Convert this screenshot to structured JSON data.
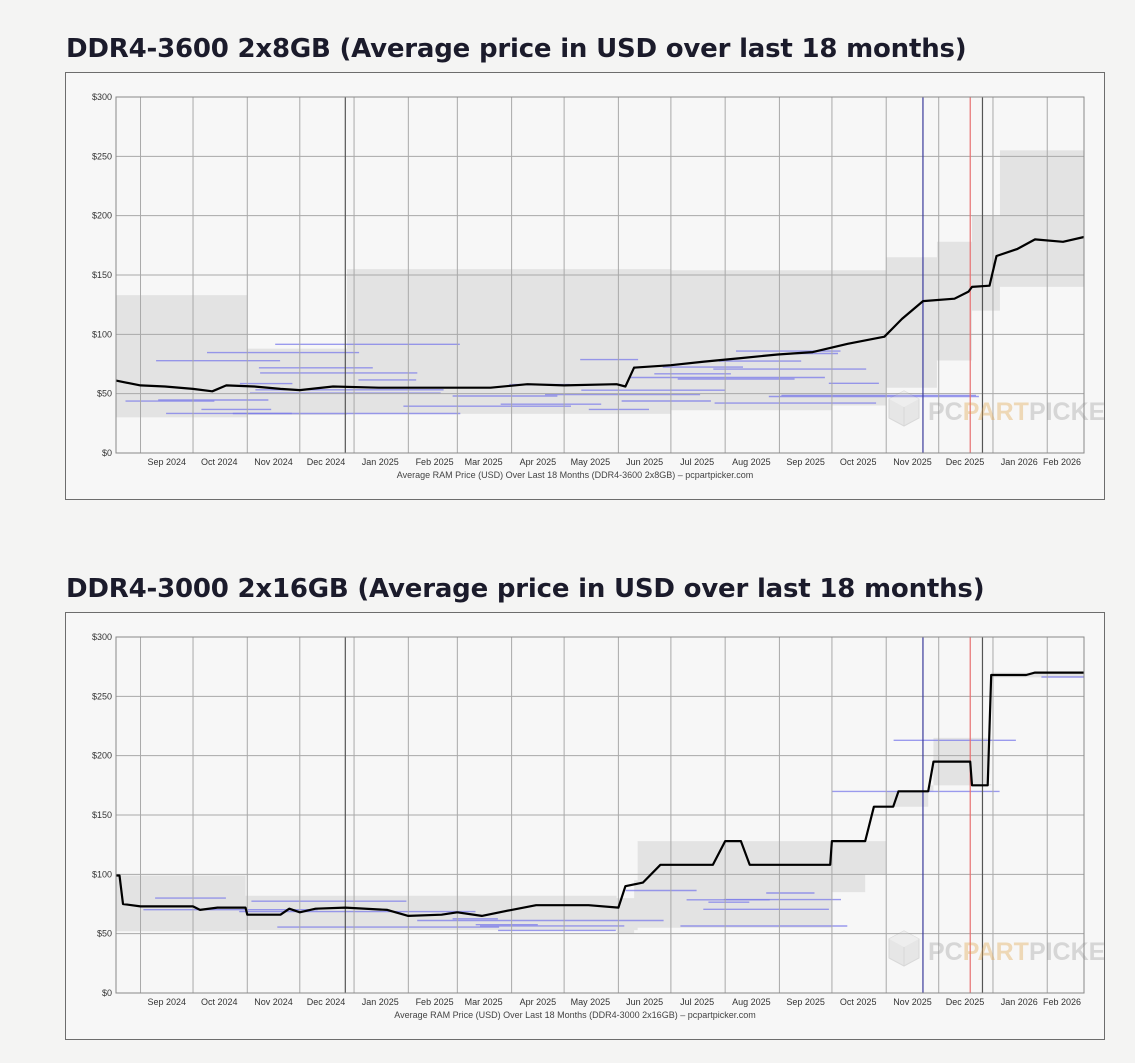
{
  "charts": [
    {
      "heading": "DDR4-3600 2x8GB (Average price in USD over last 18 months)",
      "caption": "Average RAM Price (USD) Over Last 18 Months (DDR4-3600 2x8GB) – pcpartpicker.com",
      "watermark": {
        "pc": "PC",
        "part": "PART",
        "picker": "PICKER"
      }
    },
    {
      "heading": "DDR4-3000 2x16GB (Average price in USD over last 18 months)",
      "caption": "Average RAM Price (USD) Over Last 18 Months (DDR4-3000 2x16GB) – pcpartpicker.com",
      "watermark": {
        "pc": "PC",
        "part": "PART",
        "picker": "PICKER"
      }
    }
  ],
  "colors": {
    "average_line": "#000000",
    "retailer_lines": "#7b7bea",
    "price_band": "#e3e3e3",
    "grid": "#a9a9a9",
    "marker_blue": "#3a3a9c",
    "marker_red": "#e87070",
    "marker_dark": "#555555"
  },
  "chart_data": [
    {
      "type": "line",
      "x_unit": "month",
      "xlim": [
        "2024-08-18",
        "2026-02-22"
      ],
      "ylim": [
        0,
        300
      ],
      "y_ticks": [
        "$0",
        "$50",
        "$100",
        "$150",
        "$200",
        "$250",
        "$300"
      ],
      "x_ticks": [
        "Sep 2024",
        "Oct 2024",
        "Nov 2024",
        "Dec 2024",
        "Jan 2025",
        "Feb 2025",
        "Mar 2025",
        "Apr 2025",
        "May 2025",
        "Jun 2025",
        "Jul 2025",
        "Aug 2025",
        "Sep 2025",
        "Oct 2025",
        "Nov 2025",
        "Dec 2025",
        "Jan 2026",
        "Feb 2026"
      ],
      "grid": true,
      "vertical_markers": [
        {
          "date": "2024-12-27",
          "color": "#555555"
        },
        {
          "date": "2025-11-22",
          "color": "#3a3a9c"
        },
        {
          "date": "2025-12-19",
          "color": "#e87070"
        },
        {
          "date": "2025-12-26",
          "color": "#555555"
        }
      ],
      "series": [
        {
          "kind": "average",
          "points": [
            [
              "2024-08-18",
              61
            ],
            [
              "2024-09-01",
              57
            ],
            [
              "2024-09-15",
              56
            ],
            [
              "2024-10-01",
              54
            ],
            [
              "2024-10-12",
              52
            ],
            [
              "2024-10-20",
              57
            ],
            [
              "2024-11-05",
              56
            ],
            [
              "2024-11-20",
              54
            ],
            [
              "2024-12-01",
              53
            ],
            [
              "2024-12-20",
              56
            ],
            [
              "2025-01-15",
              55
            ],
            [
              "2025-02-15",
              55
            ],
            [
              "2025-03-20",
              55
            ],
            [
              "2025-04-10",
              58
            ],
            [
              "2025-05-01",
              57
            ],
            [
              "2025-05-31",
              58
            ],
            [
              "2025-06-05",
              56
            ],
            [
              "2025-06-10",
              72
            ],
            [
              "2025-07-01",
              74
            ],
            [
              "2025-07-20",
              77
            ],
            [
              "2025-08-10",
              80
            ],
            [
              "2025-08-31",
              83
            ],
            [
              "2025-09-20",
              85
            ],
            [
              "2025-10-10",
              92
            ],
            [
              "2025-10-31",
              98
            ],
            [
              "2025-11-10",
              113
            ],
            [
              "2025-11-22",
              128
            ],
            [
              "2025-12-10",
              130
            ],
            [
              "2025-12-18",
              136
            ],
            [
              "2025-12-20",
              140
            ],
            [
              "2025-12-30",
              141
            ],
            [
              "2026-01-03",
              166
            ],
            [
              "2026-01-15",
              172
            ],
            [
              "2026-01-25",
              180
            ],
            [
              "2026-02-10",
              178
            ],
            [
              "2026-02-22",
              182
            ]
          ]
        },
        {
          "kind": "range_band",
          "points": [
            [
              "2024-08-18",
              30,
              133
            ],
            [
              "2024-10-31",
              30,
              133
            ],
            [
              "2024-11-01",
              32,
              88
            ],
            [
              "2024-12-27",
              32,
              88
            ],
            [
              "2024-12-28",
              33,
              155
            ],
            [
              "2025-06-15",
              33,
              155
            ],
            [
              "2025-07-01",
              36,
              154
            ],
            [
              "2025-09-01",
              36,
              154
            ],
            [
              "2025-10-01",
              40,
              154
            ],
            [
              "2025-11-01",
              55,
              165
            ],
            [
              "2025-11-30",
              78,
              178
            ],
            [
              "2025-12-20",
              120,
              200
            ],
            [
              "2026-01-05",
              140,
              255
            ],
            [
              "2026-02-22",
              138,
              258
            ]
          ]
        },
        {
          "kind": "retailer_levels",
          "values": [
            34,
            38,
            42,
            45,
            48,
            52,
            58,
            63,
            68,
            72,
            78,
            85,
            93
          ]
        }
      ]
    },
    {
      "type": "line",
      "x_unit": "month",
      "xlim": [
        "2024-08-18",
        "2026-02-22"
      ],
      "ylim": [
        0,
        300
      ],
      "y_ticks": [
        "$0",
        "$50",
        "$100",
        "$150",
        "$200",
        "$250",
        "$300"
      ],
      "x_ticks": [
        "Sep 2024",
        "Oct 2024",
        "Nov 2024",
        "Dec 2024",
        "Jan 2025",
        "Feb 2025",
        "Mar 2025",
        "Apr 2025",
        "May 2025",
        "Jun 2025",
        "Jul 2025",
        "Aug 2025",
        "Sep 2025",
        "Oct 2025",
        "Nov 2025",
        "Dec 2025",
        "Jan 2026",
        "Feb 2026"
      ],
      "grid": true,
      "vertical_markers": [
        {
          "date": "2024-12-27",
          "color": "#555555"
        },
        {
          "date": "2025-11-22",
          "color": "#3a3a9c"
        },
        {
          "date": "2025-12-19",
          "color": "#e87070"
        },
        {
          "date": "2025-12-26",
          "color": "#555555"
        }
      ],
      "series": [
        {
          "kind": "average",
          "points": [
            [
              "2024-08-18",
              99
            ],
            [
              "2024-08-20",
              99
            ],
            [
              "2024-08-22",
              75
            ],
            [
              "2024-09-01",
              73
            ],
            [
              "2024-10-01",
              73
            ],
            [
              "2024-10-05",
              70
            ],
            [
              "2024-10-15",
              72
            ],
            [
              "2024-10-31",
              72
            ],
            [
              "2024-11-01",
              66
            ],
            [
              "2024-11-20",
              66
            ],
            [
              "2024-11-25",
              71
            ],
            [
              "2024-12-01",
              68
            ],
            [
              "2024-12-10",
              71
            ],
            [
              "2024-12-27",
              72
            ],
            [
              "2025-01-20",
              70
            ],
            [
              "2025-02-01",
              65
            ],
            [
              "2025-02-20",
              66
            ],
            [
              "2025-03-01",
              68
            ],
            [
              "2025-03-15",
              65
            ],
            [
              "2025-04-01",
              70
            ],
            [
              "2025-04-15",
              74
            ],
            [
              "2025-05-15",
              74
            ],
            [
              "2025-06-01",
              72
            ],
            [
              "2025-06-05",
              90
            ],
            [
              "2025-06-15",
              93
            ],
            [
              "2025-06-25",
              108
            ],
            [
              "2025-07-25",
              108
            ],
            [
              "2025-08-01",
              128
            ],
            [
              "2025-08-10",
              128
            ],
            [
              "2025-08-15",
              108
            ],
            [
              "2025-09-30",
              108
            ],
            [
              "2025-10-01",
              128
            ],
            [
              "2025-10-20",
              128
            ],
            [
              "2025-10-25",
              157
            ],
            [
              "2025-11-05",
              157
            ],
            [
              "2025-11-08",
              170
            ],
            [
              "2025-11-25",
              170
            ],
            [
              "2025-11-28",
              195
            ],
            [
              "2025-12-19",
              195
            ],
            [
              "2025-12-20",
              175
            ],
            [
              "2025-12-29",
              175
            ],
            [
              "2025-12-31",
              268
            ],
            [
              "2026-01-20",
              268
            ],
            [
              "2026-01-25",
              270
            ],
            [
              "2026-02-22",
              270
            ]
          ]
        },
        {
          "kind": "range_band",
          "points": [
            [
              "2024-08-18",
              52,
              99
            ],
            [
              "2024-10-25",
              52,
              99
            ],
            [
              "2024-10-31",
              53,
              82
            ],
            [
              "2025-05-31",
              50,
              80
            ],
            [
              "2025-06-10",
              53,
              95
            ],
            [
              "2025-06-12",
              55,
              128
            ],
            [
              "2025-10-01",
              85,
              128
            ],
            [
              "2025-10-20",
              100,
              128
            ],
            [
              "2025-11-01",
              157,
              170
            ],
            [
              "2025-11-25",
              170,
              175
            ],
            [
              "2025-11-28",
              175,
              215
            ],
            [
              "2025-12-19",
              175,
              215
            ],
            [
              "2025-12-29",
              175,
              176
            ],
            [
              "2025-12-31",
              266,
              270
            ],
            [
              "2026-02-22",
              266,
              275
            ]
          ]
        },
        {
          "kind": "retailer_levels",
          "values": [
            52,
            57,
            62,
            70,
            76,
            80,
            85,
            128,
            170,
            175,
            195,
            213,
            266,
            270
          ]
        }
      ]
    }
  ]
}
